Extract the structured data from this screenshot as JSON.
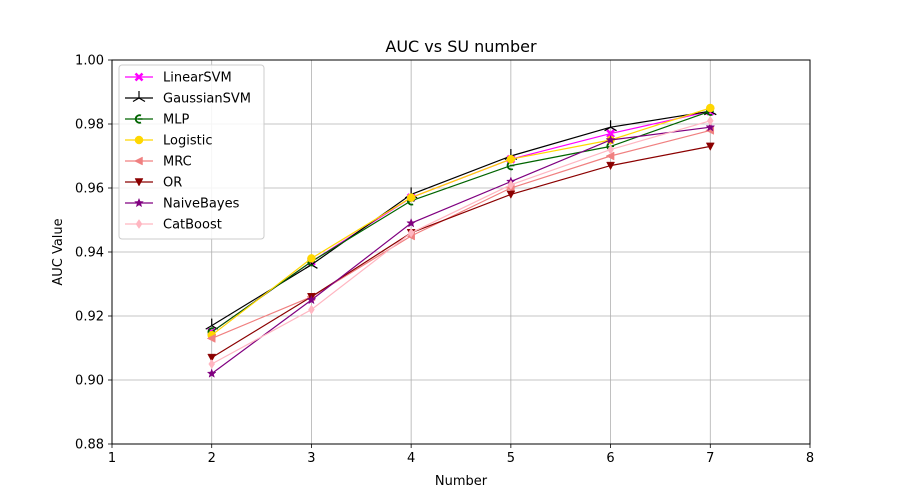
{
  "chart_data": {
    "type": "line",
    "title": "AUC vs SU number",
    "xlabel": "Number",
    "ylabel": "AUC Value",
    "xlim": [
      1,
      8
    ],
    "ylim": [
      0.88,
      1.0
    ],
    "xticks": [
      "1",
      "2",
      "3",
      "4",
      "5",
      "6",
      "7",
      "8"
    ],
    "yticks": [
      "0.88",
      "0.90",
      "0.92",
      "0.94",
      "0.96",
      "0.98",
      "1.00"
    ],
    "grid": true,
    "legend_position": "top-left",
    "x": [
      2,
      3,
      4,
      5,
      6,
      7
    ],
    "series": [
      {
        "name": "LinearSVM",
        "color": "#ff00ff",
        "marker": "x",
        "values": [
          0.915,
          0.937,
          0.957,
          0.969,
          0.977,
          0.984
        ]
      },
      {
        "name": "GaussianSVM",
        "color": "#000000",
        "marker": "tri-up",
        "values": [
          0.917,
          0.936,
          0.958,
          0.97,
          0.979,
          0.984
        ]
      },
      {
        "name": "MLP",
        "color": "#006400",
        "marker": "c",
        "values": [
          0.915,
          0.937,
          0.956,
          0.967,
          0.973,
          0.984
        ]
      },
      {
        "name": "Logistic",
        "color": "#ffd700",
        "marker": "circle",
        "values": [
          0.914,
          0.938,
          0.957,
          0.969,
          0.975,
          0.985
        ]
      },
      {
        "name": "MRC",
        "color": "#f08080",
        "marker": "triangle-left",
        "values": [
          0.913,
          0.926,
          0.945,
          0.96,
          0.97,
          0.978
        ]
      },
      {
        "name": "OR",
        "color": "#8b0000",
        "marker": "triangle-down",
        "values": [
          0.907,
          0.926,
          0.946,
          0.958,
          0.967,
          0.973
        ]
      },
      {
        "name": "NaiveBayes",
        "color": "#800080",
        "marker": "star",
        "values": [
          0.902,
          0.925,
          0.949,
          0.962,
          0.975,
          0.979
        ]
      },
      {
        "name": "CatBoost",
        "color": "#ffb6c1",
        "marker": "diamond",
        "values": [
          0.905,
          0.922,
          0.946,
          0.961,
          0.972,
          0.981
        ]
      }
    ]
  }
}
